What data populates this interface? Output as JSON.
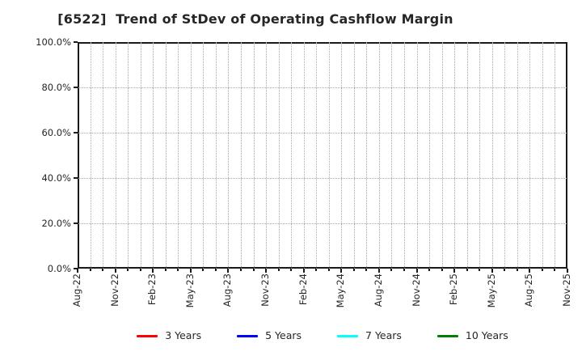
{
  "window": {
    "background_color": "#ffffff"
  },
  "chart_data": {
    "type": "line",
    "title": "[6522]  Trend of StDev of Operating Cashflow Margin",
    "xlabel": "",
    "ylabel": "",
    "x_tick_labels": [
      "Aug-22",
      "Nov-22",
      "Feb-23",
      "May-23",
      "Aug-23",
      "Nov-23",
      "Feb-24",
      "May-24",
      "Aug-24",
      "Nov-24",
      "Feb-25",
      "May-25",
      "Aug-25",
      "Nov-25"
    ],
    "x_months_per_labeled_tick": 3,
    "x_total_month_intervals": 39,
    "y_tick_labels": [
      "0.0%",
      "20.0%",
      "40.0%",
      "60.0%",
      "80.0%",
      "100.0%"
    ],
    "y_tick_values": [
      0,
      20,
      40,
      60,
      80,
      100
    ],
    "ylim": [
      0,
      100
    ],
    "grid": {
      "shown": true,
      "style": "dotted",
      "color": "#a8a8a8",
      "vertical_interval": "monthly",
      "horizontal_interval_percent": 20
    },
    "frame_color": "#1a1a1a",
    "tick_label_color": "#262626",
    "title_color": "#262626",
    "legend": {
      "position": "bottom-center",
      "entries": [
        {
          "label": "3 Years",
          "color": "#ff0000"
        },
        {
          "label": "5 Years",
          "color": "#0000ff"
        },
        {
          "label": "7 Years",
          "color": "#00ffff"
        },
        {
          "label": "10 Years",
          "color": "#008000"
        }
      ]
    },
    "series": [
      {
        "name": "3 Years",
        "color": "#ff0000",
        "values": []
      },
      {
        "name": "5 Years",
        "color": "#0000ff",
        "values": []
      },
      {
        "name": "7 Years",
        "color": "#00ffff",
        "values": []
      },
      {
        "name": "10 Years",
        "color": "#008000",
        "values": []
      }
    ],
    "note": "Plot area is empty - no data lines are drawn in the visible chart"
  }
}
